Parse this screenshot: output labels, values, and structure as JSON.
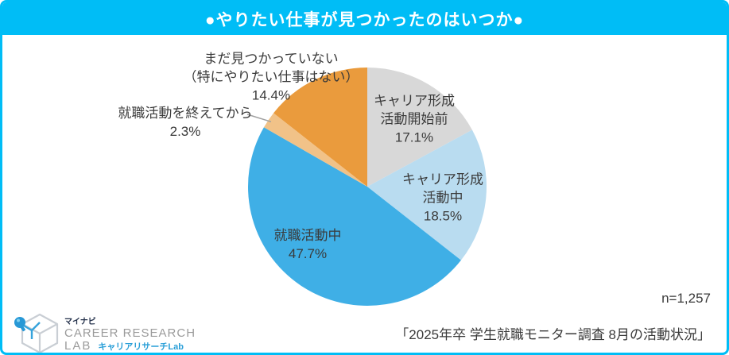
{
  "header": {
    "title": "●やりたい仕事が見つかったのはいつか●"
  },
  "chart_data": {
    "type": "pie",
    "title": "やりたい仕事が見つかったのはいつか",
    "start_angle_deg": 0,
    "direction": "clockwise",
    "unit": "%",
    "segments": [
      {
        "label": "キャリア形成活動開始前",
        "value": 17.1,
        "color": "#d8d8d8"
      },
      {
        "label": "キャリア形成活動中",
        "value": 18.5,
        "color": "#b9dcf0"
      },
      {
        "label": "就職活動中",
        "value": 47.7,
        "color": "#3fafe6"
      },
      {
        "label": "就職活動を終えてから",
        "value": 2.3,
        "color": "#f1c288"
      },
      {
        "label": "まだ見つかっていない（特にやりたい仕事はない）",
        "value": 14.4,
        "color": "#ea9b3d"
      }
    ],
    "sample_size": "n=1,257"
  },
  "labels": {
    "career_before": "キャリア形成\n活動開始前\n17.1%",
    "career_during": "キャリア形成\n活動中\n18.5%",
    "job_hunting": "就職活動中\n47.7%",
    "after_hunting": "就職活動を終えてから\n2.3%",
    "not_found": "まだ見つかっていない\n（特にやりたい仕事はない）\n14.4%"
  },
  "footnote": {
    "sample_size": "n=1,257",
    "source": "「2025年卒 学生就職モニター調査 8月の活動状況」"
  },
  "logo": {
    "brand": "マイナビ",
    "line1": "CAREER RESEARCH",
    "line2": "LAB",
    "sub": "キャリアリサーチLab"
  },
  "colors": {
    "accent": "#00bdf6",
    "text": "#3a3a3a",
    "leader_line": "#a0a0a0"
  }
}
